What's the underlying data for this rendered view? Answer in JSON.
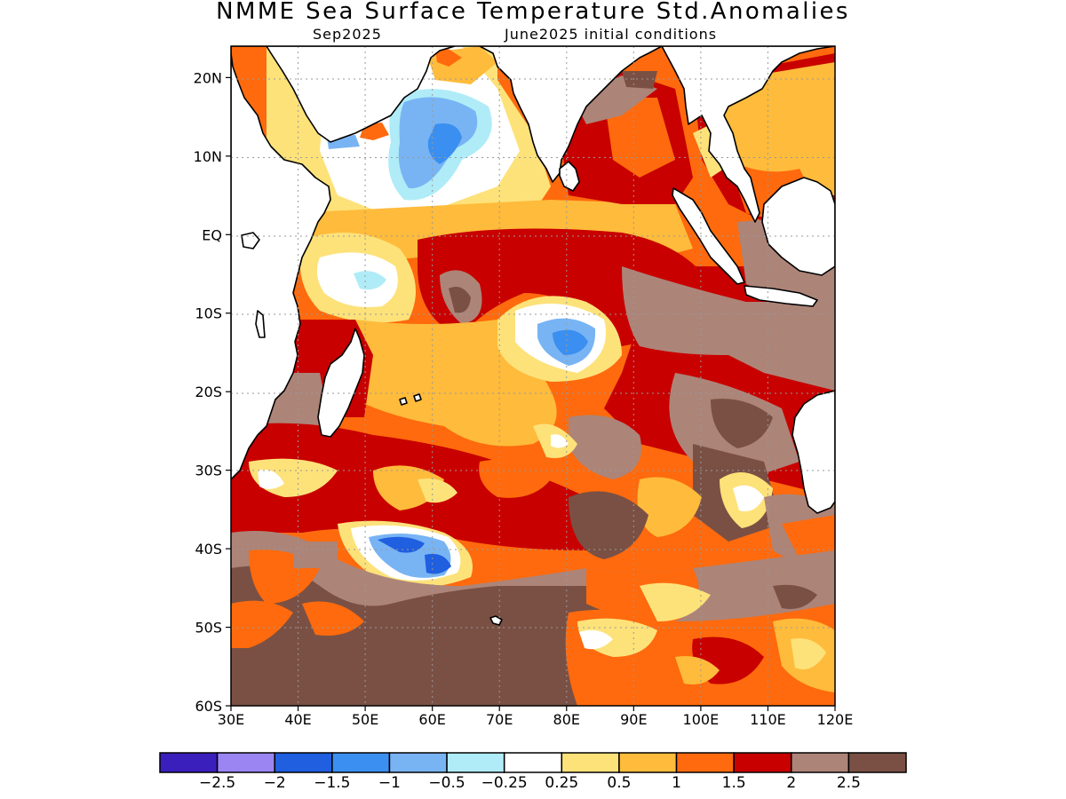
{
  "title": "NMME Sea Surface Temperature Std.Anomalies",
  "subtitle_left": "Sep2025",
  "subtitle_right": "June2025 initial conditions",
  "map": {
    "lon_range": [
      30,
      120
    ],
    "lat_range": [
      -60,
      24
    ],
    "grid": true,
    "x_ticks": [
      "30E",
      "40E",
      "50E",
      "60E",
      "70E",
      "80E",
      "90E",
      "100E",
      "110E",
      "120E"
    ],
    "y_ticks": [
      "20N",
      "10N",
      "EQ",
      "10S",
      "20S",
      "30S",
      "40S",
      "50S",
      "60S"
    ]
  },
  "colorbar": {
    "colors": [
      "#3a1fbd",
      "#9b85f3",
      "#1f5fe0",
      "#3b8ff0",
      "#78b4f4",
      "#b0ecf7",
      "#ffffff",
      "#fde27a",
      "#ffbb3b",
      "#fe6a0d",
      "#c80000",
      "#ad8478",
      "#7a5044"
    ],
    "labels": [
      "−2.5",
      "−2",
      "−1.5",
      "−1",
      "−0.5",
      "−0.25",
      "0.25",
      "0.5",
      "1",
      "1.5",
      "2",
      "2.5"
    ]
  }
}
